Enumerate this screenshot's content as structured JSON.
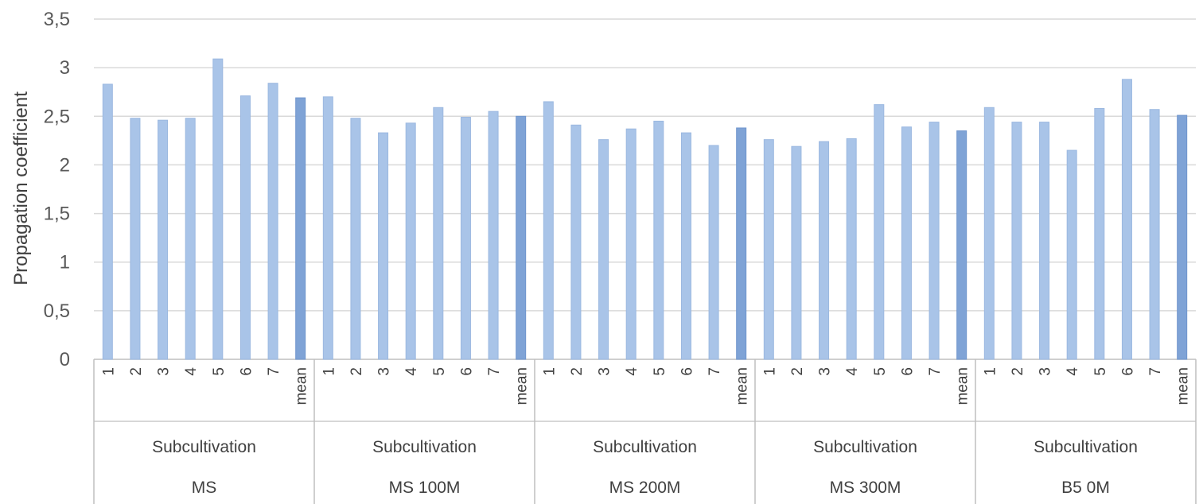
{
  "chart_data": {
    "type": "bar",
    "ylabel": "Propagation coefficient",
    "ylim": [
      0,
      3.5
    ],
    "yticks": [
      "0",
      "0,5",
      "1",
      "1,5",
      "2",
      "2,5",
      "3",
      "3,5"
    ],
    "grid": true,
    "categories": [
      "1",
      "2",
      "3",
      "4",
      "5",
      "6",
      "7",
      "mean"
    ],
    "groups": [
      {
        "label_top": "Subcultivation",
        "label_bottom": "MS",
        "values": [
          2.83,
          2.48,
          2.46,
          2.48,
          3.09,
          2.71,
          2.84,
          2.69
        ]
      },
      {
        "label_top": "Subcultivation",
        "label_bottom": "MS 100M",
        "values": [
          2.7,
          2.48,
          2.33,
          2.43,
          2.59,
          2.49,
          2.55,
          2.5
        ]
      },
      {
        "label_top": "Subcultivation",
        "label_bottom": "MS 200M",
        "values": [
          2.65,
          2.41,
          2.26,
          2.37,
          2.45,
          2.33,
          2.2,
          2.38
        ]
      },
      {
        "label_top": "Subcultivation",
        "label_bottom": "MS 300M",
        "values": [
          2.26,
          2.19,
          2.24,
          2.27,
          2.62,
          2.39,
          2.44,
          2.35
        ]
      },
      {
        "label_top": "Subcultivation",
        "label_bottom": "B5 0M",
        "values": [
          2.59,
          2.44,
          2.44,
          2.15,
          2.58,
          2.88,
          2.57,
          2.51
        ]
      }
    ],
    "colors": {
      "bar": "#a9c4e8",
      "mean_bar": "#7fa3d6",
      "grid": "#d9d9d9",
      "axis": "#bfbfbf"
    }
  }
}
